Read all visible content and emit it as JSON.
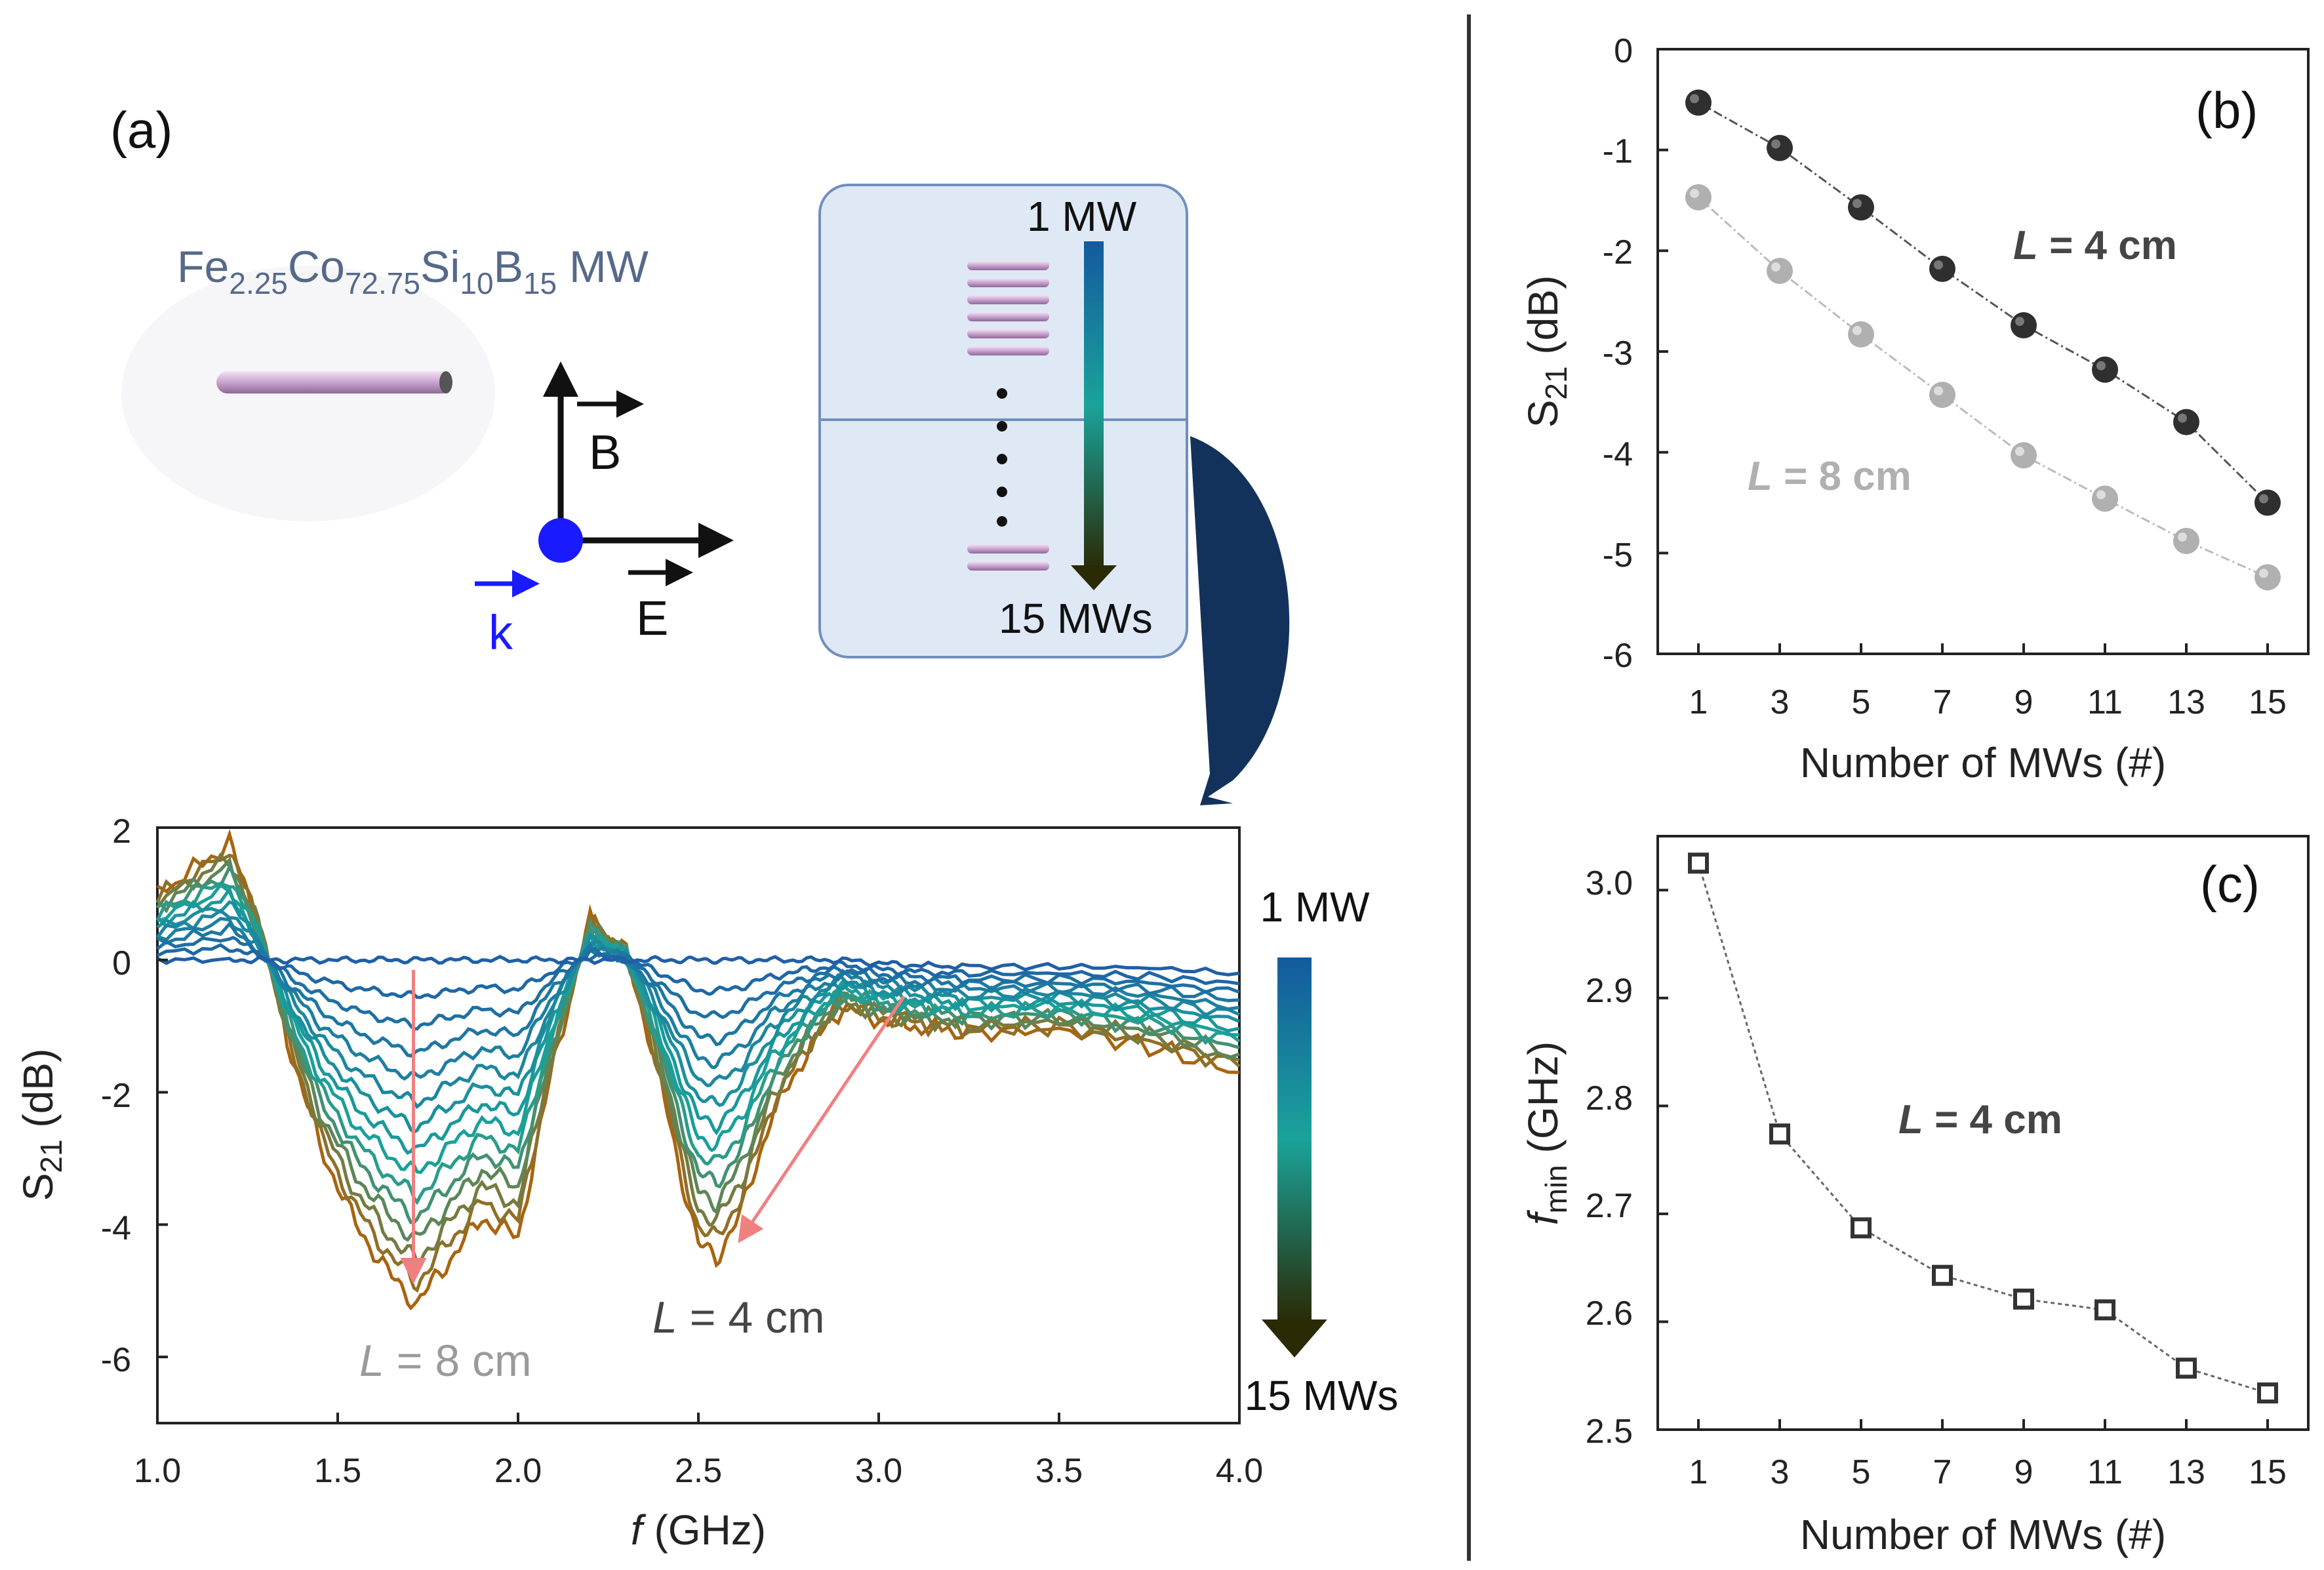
{
  "colors": {
    "axis": "#222222",
    "panel_a_box": "#dfe8f5",
    "panel_a_box_border": "#6f8fbf",
    "arrow_pink": "#f08080",
    "wire": "#d9b8dc",
    "k_blue": "#1a1aff",
    "curve_arrow": "#13325b",
    "gradient_top": "#145a9e",
    "gradient_mid": "#1aa39a",
    "gradient_bottom": "#2a2a05",
    "series_dark": "#2f2f2f",
    "series_light": "#b0b0b0",
    "text_grey": "#9a9a9a",
    "text_dark": "#454545"
  },
  "panel_a": {
    "label": "(a)",
    "formula": {
      "el1": "Fe",
      "sub1": "2.25",
      "el2": "Co",
      "sub2": "72.75",
      "el3": "Si",
      "sub3": "10",
      "el4": "B",
      "sub4": "15",
      "suffix": " MW"
    },
    "field_labels": {
      "B": "B",
      "E": "E",
      "k": "k"
    },
    "box_top_label": "1 MW",
    "box_bottom_label": "15 MWs",
    "icons": [
      "microwire-icon",
      "field-axes-icon",
      "gradient-arrow-icon",
      "curved-arrow-icon"
    ]
  },
  "panel_spectrum": {
    "ylabel_main": "S",
    "ylabel_sub": "21",
    "ylabel_unit": " (dB)",
    "xlabel_f": "f",
    "xlabel_unit": " (GHz)",
    "gradient_top_label": "1 MW",
    "gradient_bottom_label": "15 MWs",
    "annotation_8": {
      "L": "L",
      "rest": " = 8 cm"
    },
    "annotation_4": {
      "L": "L",
      "rest": " = 4 cm"
    }
  },
  "panel_b": {
    "label": "(b)",
    "ylabel_main": "S",
    "ylabel_sub": "21",
    "ylabel_unit": " (dB)",
    "xlabel": "Number of MWs (#)",
    "legend_4": {
      "L": "L",
      "rest": " = 4 cm"
    },
    "legend_8": {
      "L": "L",
      "rest": " = 8 cm"
    }
  },
  "panel_c": {
    "label": "(c)",
    "ylabel_main": "f",
    "ylabel_sub": "min",
    "ylabel_unit": " (GHz)",
    "xlabel": "Number of MWs (#)",
    "annotation": {
      "L": "L",
      "rest": " = 4 cm"
    }
  },
  "chart_data": [
    {
      "id": "spectrum",
      "type": "line",
      "title": "",
      "xlabel": "f (GHz)",
      "ylabel": "S21 (dB)",
      "xlim": [
        1.0,
        4.0
      ],
      "ylim": [
        -7,
        2
      ],
      "xticks": [
        1.0,
        1.5,
        2.0,
        2.5,
        3.0,
        3.5,
        4.0
      ],
      "xtick_labels": [
        "1.0",
        "1.5",
        "2.0",
        "2.5",
        "3.0",
        "3.5",
        "4.0"
      ],
      "yticks": [
        2,
        0,
        -2,
        -4,
        -6
      ],
      "ytick_labels": [
        "2",
        "0",
        "-2",
        "-4",
        "-6"
      ],
      "series_count": 15,
      "series_note": "S21 spectra for 1 to 15 microwires; dips deepen with number of MWs",
      "x": [
        1.0,
        1.2,
        1.28,
        1.36,
        1.45,
        1.55,
        1.65,
        1.72,
        1.8,
        1.9,
        2.0,
        2.1,
        2.2,
        2.3,
        2.38,
        2.45,
        2.5,
        2.55,
        2.62,
        2.7,
        2.8,
        2.9,
        3.0,
        3.1,
        3.25,
        3.5,
        3.75,
        4.0
      ],
      "series": [
        {
          "name": "1 MW",
          "values": [
            0.0,
            0.0,
            0.0,
            0.0,
            0.0,
            0.0,
            0.0,
            0.0,
            0.0,
            0.0,
            0.0,
            0.0,
            0.0,
            0.0,
            0.0,
            0.0,
            0.0,
            0.0,
            0.0,
            0.0,
            0.0,
            0.0,
            -0.05,
            -0.08,
            -0.1,
            -0.1,
            -0.12,
            -0.2
          ]
        },
        {
          "name": "15 MWs",
          "values": [
            1.0,
            1.75,
            0.6,
            -1.2,
            -2.8,
            -4.0,
            -4.8,
            -5.2,
            -4.6,
            -3.9,
            -4.2,
            -1.5,
            0.6,
            0.1,
            -1.5,
            -3.2,
            -4.3,
            -4.5,
            -3.8,
            -2.4,
            -1.4,
            -0.7,
            -0.9,
            -1.0,
            -1.1,
            -1.05,
            -1.3,
            -1.7
          ]
        }
      ],
      "arrows": [
        {
          "from": [
            1.71,
            -0.15
          ],
          "to": [
            1.71,
            -4.8
          ],
          "label": "L = 8 cm"
        },
        {
          "from": [
            3.07,
            -0.55
          ],
          "to": [
            2.62,
            -4.2
          ],
          "label": "L = 4 cm"
        }
      ]
    },
    {
      "id": "panel-b",
      "type": "line",
      "title": "",
      "xlabel": "Number of MWs (#)",
      "ylabel": "S21 (dB)",
      "xlim": [
        0,
        16
      ],
      "ylim": [
        -6,
        0
      ],
      "xticks": [
        1,
        3,
        5,
        7,
        9,
        11,
        13,
        15
      ],
      "xtick_labels": [
        "1",
        "3",
        "5",
        "7",
        "9",
        "11",
        "13",
        "15"
      ],
      "yticks": [
        0,
        -1,
        -2,
        -3,
        -4,
        -5,
        -6
      ],
      "ytick_labels": [
        "0",
        "-1",
        "-2",
        "-3",
        "-4",
        "-5",
        "-6"
      ],
      "categories": [
        1,
        3,
        5,
        7,
        9,
        11,
        13,
        15
      ],
      "series": [
        {
          "name": "L = 4 cm",
          "values": [
            -0.53,
            -0.98,
            -1.57,
            -2.18,
            -2.74,
            -3.18,
            -3.7,
            -4.5
          ]
        },
        {
          "name": "L = 8 cm",
          "values": [
            -1.47,
            -2.2,
            -2.83,
            -3.43,
            -4.03,
            -4.46,
            -4.88,
            -5.24
          ]
        }
      ]
    },
    {
      "id": "panel-c",
      "type": "line",
      "title": "",
      "xlabel": "Number of MWs (#)",
      "ylabel": "f_min (GHz)",
      "xlim": [
        0,
        16
      ],
      "ylim": [
        2.5,
        3.05
      ],
      "xticks": [
        1,
        3,
        5,
        7,
        9,
        11,
        13,
        15
      ],
      "xtick_labels": [
        "1",
        "3",
        "5",
        "7",
        "9",
        "11",
        "13",
        "15"
      ],
      "yticks": [
        3.0,
        2.9,
        2.8,
        2.7,
        2.6,
        2.5
      ],
      "ytick_labels": [
        "3.0",
        "2.9",
        "2.8",
        "2.7",
        "2.6",
        "2.5"
      ],
      "categories": [
        1,
        3,
        5,
        7,
        9,
        11,
        13,
        15
      ],
      "series": [
        {
          "name": "L = 4 cm",
          "values": [
            3.025,
            2.774,
            2.687,
            2.643,
            2.621,
            2.611,
            2.557,
            2.534
          ]
        }
      ]
    }
  ]
}
